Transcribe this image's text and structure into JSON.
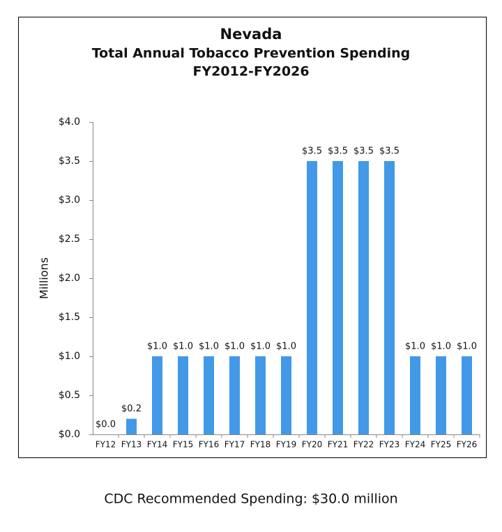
{
  "chart_data": {
    "type": "bar",
    "title_lines": [
      "Nevada",
      "Total Annual Tobacco Prevention Spending",
      "FY2012-FY2026"
    ],
    "y_label": "Millions",
    "categories": [
      "FY12",
      "FY13",
      "FY14",
      "FY15",
      "FY16",
      "FY17",
      "FY18",
      "FY19",
      "FY20",
      "FY21",
      "FY22",
      "FY23",
      "FY24",
      "FY25",
      "FY26"
    ],
    "values": [
      0.0,
      0.2,
      1.0,
      1.0,
      1.0,
      1.0,
      1.0,
      1.0,
      3.5,
      3.5,
      3.5,
      3.5,
      1.0,
      1.0,
      1.0
    ],
    "value_labels": [
      "$0.0",
      "$0.2",
      "$1.0",
      "$1.0",
      "$1.0",
      "$1.0",
      "$1.0",
      "$1.0",
      "$3.5",
      "$3.5",
      "$3.5",
      "$3.5",
      "$1.0",
      "$1.0",
      "$1.0"
    ],
    "color": "#4299e8",
    "ylim": [
      0,
      4
    ],
    "yticks": [
      {
        "value": 0,
        "label": "$0.0"
      },
      {
        "value": 0.5,
        "label": "$0.5"
      },
      {
        "value": 1,
        "label": "$1.0"
      },
      {
        "value": 1.5,
        "label": "$1.5"
      },
      {
        "value": 2,
        "label": "$2.0"
      },
      {
        "value": 2.5,
        "label": "$2.5"
      },
      {
        "value": 3,
        "label": "$3.0"
      },
      {
        "value": 3.5,
        "label": "$3.5"
      },
      {
        "value": 4,
        "label": "$4.0"
      }
    ],
    "grid": false
  },
  "footer": "CDC Recommended Spending: $30.0 million"
}
